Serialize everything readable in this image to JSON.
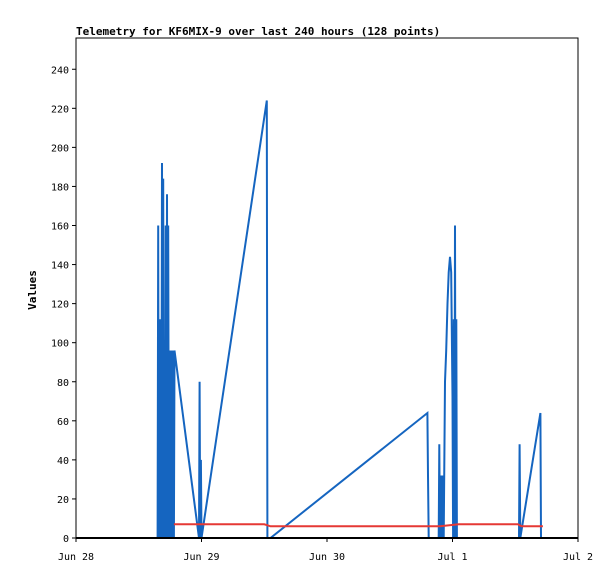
{
  "chart_data": {
    "type": "line",
    "title": "Telemetry for KF6MIX-9 over last 240 hours (128 points)",
    "ylabel": "Values",
    "xlabel": "",
    "x_ticks": [
      "Jun 28",
      "Jun 29",
      "Jun 30",
      "Jul 1",
      "Jul 2"
    ],
    "y_ticks": [
      "0",
      "20",
      "40",
      "60",
      "80",
      "100",
      "120",
      "140",
      "160",
      "180",
      "200",
      "220",
      "240"
    ],
    "xlim_days": [
      0,
      4
    ],
    "ylim": [
      0,
      256
    ],
    "grid": false,
    "legend": "none",
    "colors": {
      "series_1": "#1565c0",
      "series_2": "#e53935",
      "series_3": "#000000",
      "axis": "#000000"
    },
    "series": [
      {
        "x": [
          0.65,
          0.655,
          0.66,
          0.665,
          0.67,
          0.675,
          0.68,
          0.685,
          0.69,
          0.695,
          0.7,
          0.705,
          0.71,
          0.715,
          0.72,
          0.725,
          0.73,
          0.735,
          0.74,
          0.745,
          0.75,
          0.755,
          0.76,
          0.765,
          0.77,
          0.775,
          0.78,
          0.785,
          0.98,
          0.985,
          0.99,
          0.995,
          1.0,
          1.52,
          1.525,
          1.53,
          1.55,
          2.8,
          2.805,
          2.81,
          2.89,
          2.895,
          2.9,
          2.91,
          2.915,
          2.92,
          2.93,
          2.94,
          2.95,
          2.96,
          2.97,
          2.98,
          2.99,
          3.0,
          3.005,
          3.01,
          3.015,
          3.02,
          3.025,
          3.03,
          3.035,
          3.04,
          3.045,
          3.05,
          3.055,
          3.53,
          3.535,
          3.54,
          3.7,
          3.705,
          3.71
        ],
        "y": [
          0,
          160,
          0,
          112,
          0,
          112,
          0,
          192,
          0,
          184,
          0,
          80,
          0,
          160,
          0,
          176,
          0,
          160,
          0,
          96,
          0,
          96,
          0,
          96,
          0,
          96,
          0,
          96,
          0,
          80,
          0,
          40,
          0,
          224,
          0,
          0,
          0,
          64,
          32,
          0,
          0,
          48,
          0,
          32,
          0,
          32,
          0,
          80,
          96,
          120,
          136,
          144,
          136,
          72,
          0,
          112,
          0,
          160,
          0,
          112,
          0,
          0,
          0,
          0,
          0,
          0,
          48,
          0,
          64,
          0,
          0
        ]
      },
      {
        "x": [
          0.78,
          1.5,
          1.55,
          2.9,
          3.05,
          3.52,
          3.55,
          3.72
        ],
        "y": [
          7,
          7,
          6,
          6,
          7,
          7,
          6,
          6
        ]
      },
      {
        "x": [
          0.0,
          4.0
        ],
        "y": [
          0,
          0
        ]
      }
    ]
  }
}
